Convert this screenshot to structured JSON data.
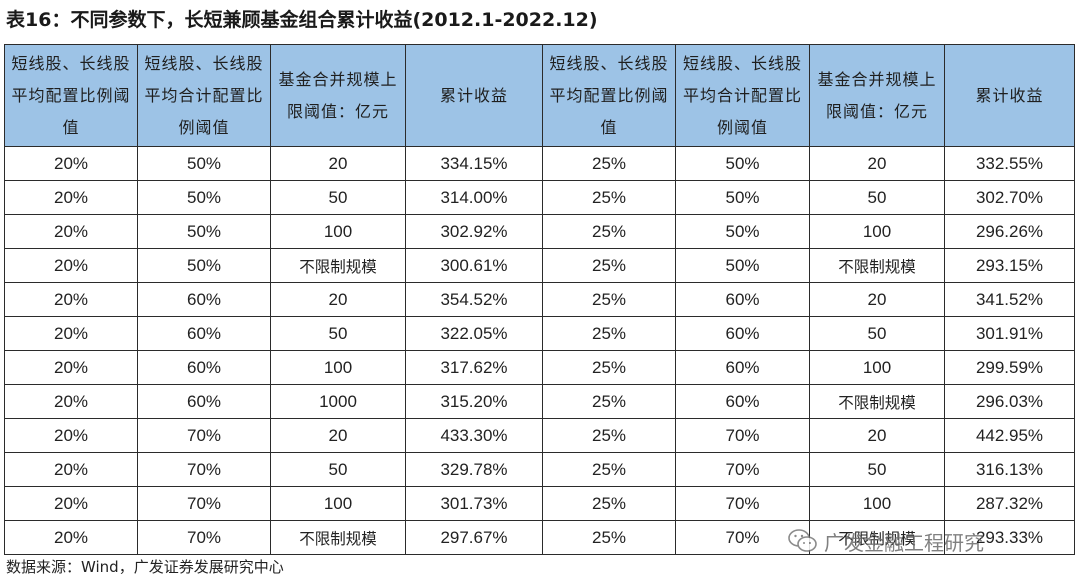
{
  "title": "表16：不同参数下，长短兼顾基金组合累计收益(2012.1-2022.12)",
  "table": {
    "headers": [
      "短线股、长线股平均配置比例阈值",
      "短线股、长线股平均合计配置比例阈值",
      "基金合并规模上限阈值：亿元",
      "累计收益",
      "短线股、长线股平均配置比例阈值",
      "短线股、长线股平均合计配置比例阈值",
      "基金合并规模上限阈值：亿元",
      "累计收益"
    ],
    "rows": [
      [
        "20%",
        "50%",
        "20",
        "334.15%",
        "25%",
        "50%",
        "20",
        "332.55%"
      ],
      [
        "20%",
        "50%",
        "50",
        "314.00%",
        "25%",
        "50%",
        "50",
        "302.70%"
      ],
      [
        "20%",
        "50%",
        "100",
        "302.92%",
        "25%",
        "50%",
        "100",
        "296.26%"
      ],
      [
        "20%",
        "50%",
        "不限制规模",
        "300.61%",
        "25%",
        "50%",
        "不限制规模",
        "293.15%"
      ],
      [
        "20%",
        "60%",
        "20",
        "354.52%",
        "25%",
        "60%",
        "20",
        "341.52%"
      ],
      [
        "20%",
        "60%",
        "50",
        "322.05%",
        "25%",
        "60%",
        "50",
        "301.91%"
      ],
      [
        "20%",
        "60%",
        "100",
        "317.62%",
        "25%",
        "60%",
        "100",
        "299.59%"
      ],
      [
        "20%",
        "60%",
        "1000",
        "315.20%",
        "25%",
        "60%",
        "不限制规模",
        "296.03%"
      ],
      [
        "20%",
        "70%",
        "20",
        "433.30%",
        "25%",
        "70%",
        "20",
        "442.95%"
      ],
      [
        "20%",
        "70%",
        "50",
        "329.78%",
        "25%",
        "70%",
        "50",
        "316.13%"
      ],
      [
        "20%",
        "70%",
        "100",
        "301.73%",
        "25%",
        "70%",
        "100",
        "287.32%"
      ],
      [
        "20%",
        "70%",
        "不限制规模",
        "297.67%",
        "25%",
        "70%",
        "不限制规模",
        "293.33%"
      ]
    ]
  },
  "source": "数据来源：Wind，广发证券发展研究中心",
  "watermark": "广发金融工程研究"
}
